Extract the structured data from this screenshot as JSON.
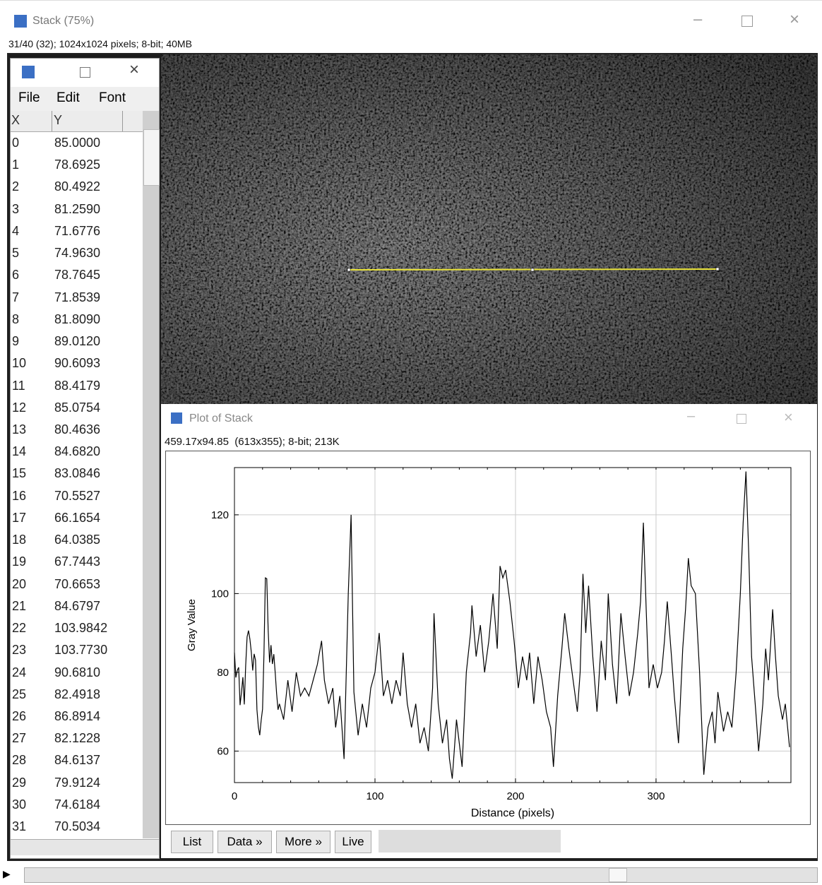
{
  "stack_window": {
    "title": "Stack (75%)",
    "info": "31/40 (32); 1024x1024 pixels; 8-bit; 40MB"
  },
  "results_window": {
    "menu": [
      "File",
      "Edit",
      "Font"
    ],
    "columns": [
      "X",
      "Y"
    ],
    "rows": [
      [
        "0",
        "85.0000"
      ],
      [
        "1",
        "78.6925"
      ],
      [
        "2",
        "80.4922"
      ],
      [
        "3",
        "81.2590"
      ],
      [
        "4",
        "71.6776"
      ],
      [
        "5",
        "74.9630"
      ],
      [
        "6",
        "78.7645"
      ],
      [
        "7",
        "71.8539"
      ],
      [
        "8",
        "81.8090"
      ],
      [
        "9",
        "89.0120"
      ],
      [
        "10",
        "90.6093"
      ],
      [
        "11",
        "88.4179"
      ],
      [
        "12",
        "85.0754"
      ],
      [
        "13",
        "80.4636"
      ],
      [
        "14",
        "84.6820"
      ],
      [
        "15",
        "83.0846"
      ],
      [
        "16",
        "70.5527"
      ],
      [
        "17",
        "66.1654"
      ],
      [
        "18",
        "64.0385"
      ],
      [
        "19",
        "67.7443"
      ],
      [
        "20",
        "70.6653"
      ],
      [
        "21",
        "84.6797"
      ],
      [
        "22",
        "103.9842"
      ],
      [
        "23",
        "103.7730"
      ],
      [
        "24",
        "90.6810"
      ],
      [
        "25",
        "82.4918"
      ],
      [
        "26",
        "86.8914"
      ],
      [
        "27",
        "82.1228"
      ],
      [
        "28",
        "84.6137"
      ],
      [
        "29",
        "79.9124"
      ],
      [
        "30",
        "74.6184"
      ],
      [
        "31",
        "70.5034"
      ]
    ]
  },
  "plot_window": {
    "title": "Plot of Stack",
    "info": "459.17x94.85  (613x355); 8-bit; 213K",
    "buttons": [
      "List",
      "Data »",
      "More »",
      "Live"
    ]
  },
  "chart_data": {
    "type": "line",
    "xlabel": "Distance (pixels)",
    "ylabel": "Gray Value",
    "color": "#000000",
    "xlim": [
      0,
      396
    ],
    "ylim": [
      52,
      132
    ],
    "xticks": [
      0,
      100,
      200,
      300
    ],
    "yticks": [
      60,
      80,
      100,
      120
    ],
    "grid": true,
    "x": [
      0,
      1,
      2,
      3,
      4,
      5,
      6,
      7,
      8,
      9,
      10,
      11,
      12,
      13,
      14,
      15,
      16,
      17,
      18,
      19,
      20,
      21,
      22,
      23,
      24,
      25,
      26,
      27,
      28,
      29,
      30,
      31,
      32,
      35,
      38,
      41,
      44,
      47,
      50,
      53,
      56,
      59,
      62,
      64,
      67,
      70,
      72,
      75,
      78,
      81,
      83,
      85,
      88,
      91,
      94,
      97,
      100,
      103,
      106,
      109,
      112,
      115,
      118,
      120,
      123,
      126,
      129,
      132,
      135,
      138,
      141,
      142,
      145,
      148,
      151,
      153,
      155,
      158,
      160,
      162,
      165,
      168,
      169,
      172,
      175,
      178,
      181,
      184,
      187,
      189,
      191,
      193,
      196,
      199,
      202,
      205,
      208,
      210,
      213,
      216,
      219,
      222,
      225,
      227,
      230,
      233,
      235,
      238,
      241,
      244,
      246,
      248,
      250,
      252,
      255,
      258,
      261,
      264,
      266,
      269,
      272,
      275,
      278,
      281,
      284,
      287,
      289,
      291,
      293,
      295,
      298,
      301,
      304,
      306,
      308,
      311,
      313,
      316,
      319,
      321,
      323,
      325,
      328,
      331,
      334,
      337,
      340,
      342,
      344,
      346,
      348,
      351,
      354,
      357,
      360,
      362,
      364,
      366,
      368,
      371,
      373,
      376,
      378,
      380,
      383,
      385,
      387,
      390,
      392,
      395
    ],
    "values": [
      85,
      78.6925,
      80.4922,
      81.259,
      71.6776,
      74.963,
      78.7645,
      71.8539,
      81.809,
      89.012,
      90.6093,
      88.4179,
      85.0754,
      80.4636,
      84.682,
      83.0846,
      70.5527,
      66.1654,
      64.0385,
      67.7443,
      70.6653,
      84.6797,
      103.9842,
      103.773,
      90.681,
      82.4918,
      86.8914,
      82.1228,
      84.6137,
      79.9124,
      74.6184,
      70.5034,
      72,
      68,
      78,
      70,
      80,
      74,
      76,
      74,
      78,
      82,
      88,
      78,
      72,
      76,
      66,
      74,
      58,
      100,
      120,
      75,
      64,
      72,
      66,
      76,
      80,
      90,
      74,
      78,
      72,
      78,
      74,
      85,
      72,
      66,
      72,
      62,
      66,
      60,
      76,
      95,
      72,
      62,
      68,
      58,
      53,
      68,
      62,
      56,
      80,
      90,
      97,
      84,
      92,
      80,
      88,
      100,
      86,
      107,
      104,
      106,
      98,
      88,
      76,
      84,
      78,
      85,
      72,
      84,
      78,
      70,
      66,
      56,
      74,
      86,
      95,
      86,
      78,
      70,
      80,
      105,
      90,
      102,
      84,
      70,
      88,
      78,
      100,
      82,
      72,
      95,
      84,
      74,
      80,
      90,
      98,
      118,
      96,
      76,
      82,
      76,
      80,
      88,
      98,
      84,
      74,
      62,
      86,
      96,
      109,
      102,
      100,
      80,
      54,
      66,
      70,
      62,
      75,
      70,
      65,
      70,
      66,
      80,
      100,
      118,
      131,
      110,
      84,
      70,
      60,
      72,
      86,
      78,
      96,
      84,
      74,
      68,
      72,
      61
    ]
  }
}
